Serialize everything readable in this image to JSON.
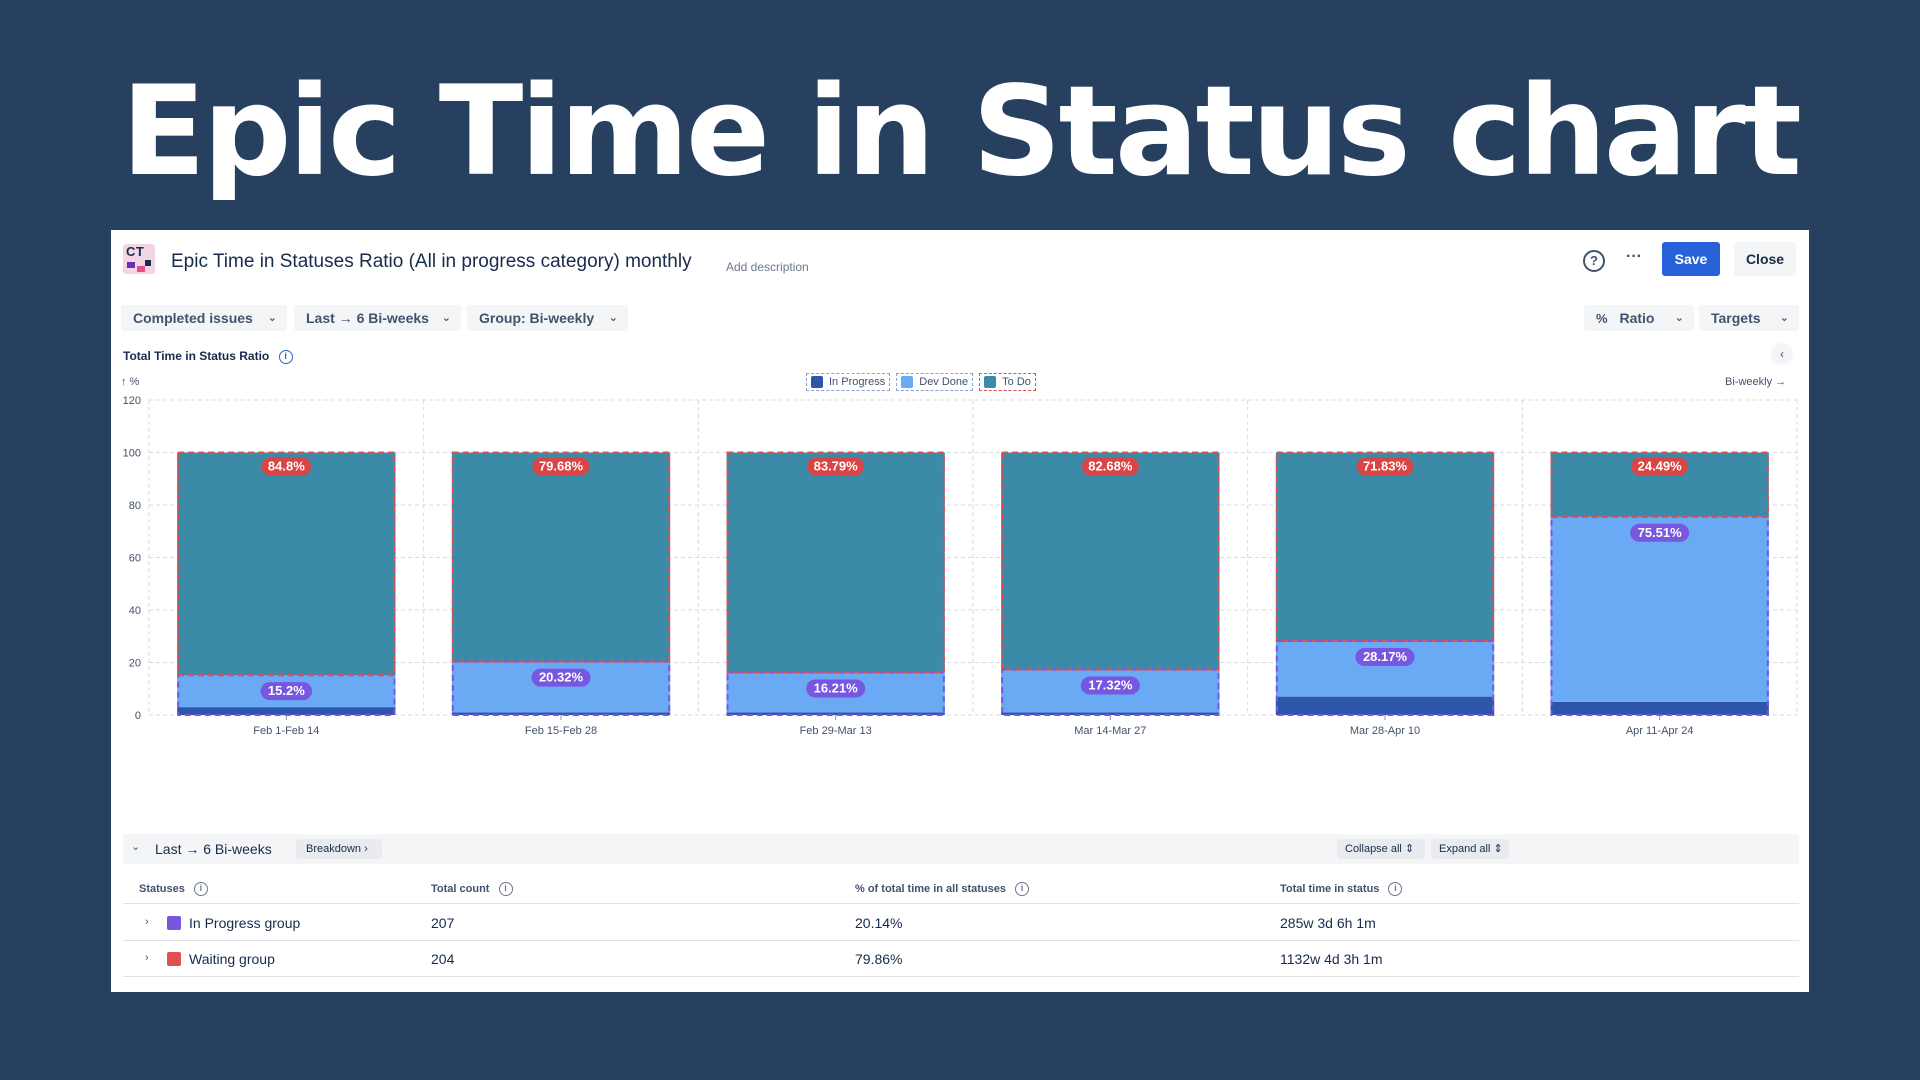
{
  "hero_title": "Epic Time in Status chart",
  "header": {
    "logo_text": "CT",
    "title": "Epic Time in Statuses Ratio (All in progress category) monthly",
    "add_description": "Add description",
    "help_glyph": "?",
    "more_glyph": "···",
    "save_label": "Save",
    "close_label": "Close"
  },
  "filters": {
    "issues": "Completed issues",
    "period": "Last → 6 Bi-weeks",
    "group": "Group: Bi-weekly",
    "view": "Ratio",
    "targets": "Targets"
  },
  "chart_header": {
    "title": "Total Time in Status Ratio",
    "y_unit": "↑ %",
    "x_unit": "Bi-weekly →"
  },
  "colors": {
    "in_progress": "#2c56a9",
    "dev_done": "#6aa9f4",
    "to_do": "#3a8aa8",
    "red_outline": "#e05050",
    "purple_outline": "#7857e0"
  },
  "chart_data": {
    "type": "bar",
    "stacked": true,
    "ylim": [
      0,
      120
    ],
    "yticks": [
      0,
      20,
      40,
      60,
      80,
      100,
      120
    ],
    "categories": [
      "Feb 1-Feb 14",
      "Feb 15-Feb 28",
      "Feb 29-Mar 13",
      "Mar 14-Mar 27",
      "Mar 28-Apr 10",
      "Apr 11-Apr 24"
    ],
    "series": [
      {
        "name": "In Progress",
        "color": "#2c56a9",
        "values": [
          3,
          1,
          1,
          1,
          7,
          5
        ]
      },
      {
        "name": "Dev Done",
        "color": "#6aa9f4",
        "values": [
          12.2,
          19.32,
          15.21,
          16.32,
          21.17,
          70.51
        ]
      },
      {
        "name": "To Do",
        "color": "#3a8aa8",
        "values": [
          84.8,
          79.68,
          83.79,
          82.68,
          71.83,
          24.49
        ]
      }
    ],
    "waiting_labels": [
      "84.8%",
      "79.68%",
      "83.79%",
      "82.68%",
      "71.83%",
      "24.49%"
    ],
    "in_progress_labels": [
      "15.2%",
      "20.32%",
      "16.21%",
      "17.32%",
      "28.17%",
      "75.51%"
    ],
    "legend_position": "top-center",
    "grid": true
  },
  "table": {
    "toolbar_title": "Last → 6 Bi-weeks",
    "breakdown_label": "Breakdown",
    "collapse_all": "Collapse all",
    "expand_all": "Expand all",
    "headers": [
      "Statuses",
      "Total count",
      "% of total time in all statuses",
      "Total time in status"
    ],
    "rows": [
      {
        "name": "In Progress group",
        "color": "#7857e0",
        "count": "207",
        "percent": "20.14%",
        "time": "285w 3d 6h 1m"
      },
      {
        "name": "Waiting group",
        "color": "#e05050",
        "count": "204",
        "percent": "79.86%",
        "time": "1132w 4d 3h 1m"
      }
    ]
  }
}
